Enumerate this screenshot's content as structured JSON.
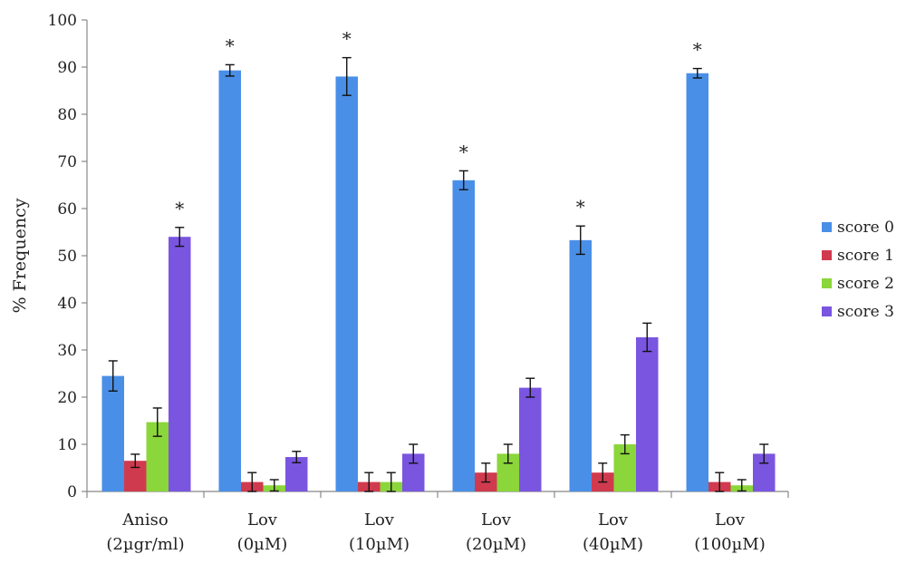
{
  "chart_data": {
    "type": "bar",
    "title": "",
    "xlabel": "",
    "ylabel": "% Frequency",
    "ylim": [
      0,
      100
    ],
    "yticks": [
      0,
      10,
      20,
      30,
      40,
      50,
      60,
      70,
      80,
      90,
      100
    ],
    "grid": false,
    "legend_position": "right",
    "categories": [
      [
        "Aniso",
        "(2µgr/ml)"
      ],
      [
        "Lov",
        "(0µM)"
      ],
      [
        "Lov",
        "(10µM)"
      ],
      [
        "Lov",
        "(20µM)"
      ],
      [
        "Lov",
        "(40µM)"
      ],
      [
        "Lov",
        "(100µM)"
      ]
    ],
    "series": [
      {
        "name": "score 0",
        "color": "#4a8fe7",
        "values": [
          24.5,
          89.3,
          88.0,
          66.0,
          53.3,
          88.7
        ],
        "errors": [
          3.2,
          1.2,
          4.0,
          2.0,
          3.0,
          1.0
        ]
      },
      {
        "name": "score 1",
        "color": "#d03a4e",
        "values": [
          6.5,
          2.0,
          2.0,
          4.0,
          4.0,
          2.0
        ],
        "errors": [
          1.4,
          2.0,
          2.0,
          2.0,
          2.0,
          2.0
        ]
      },
      {
        "name": "score 2",
        "color": "#8bd63a",
        "values": [
          14.7,
          1.3,
          2.0,
          8.0,
          10.0,
          1.3
        ],
        "errors": [
          3.0,
          1.2,
          2.0,
          2.0,
          2.0,
          1.2
        ]
      },
      {
        "name": "score 3",
        "color": "#7a55e0",
        "values": [
          54.0,
          7.3,
          8.0,
          22.0,
          32.7,
          8.0
        ],
        "errors": [
          2.0,
          1.2,
          2.0,
          2.0,
          3.0,
          2.0
        ]
      }
    ],
    "annotations": [
      {
        "category": 0,
        "series": 3,
        "text": "*"
      },
      {
        "category": 1,
        "series": 0,
        "text": "*"
      },
      {
        "category": 2,
        "series": 0,
        "text": "*"
      },
      {
        "category": 3,
        "series": 0,
        "text": "*"
      },
      {
        "category": 4,
        "series": 0,
        "text": "*"
      },
      {
        "category": 5,
        "series": 0,
        "text": "*"
      }
    ]
  }
}
